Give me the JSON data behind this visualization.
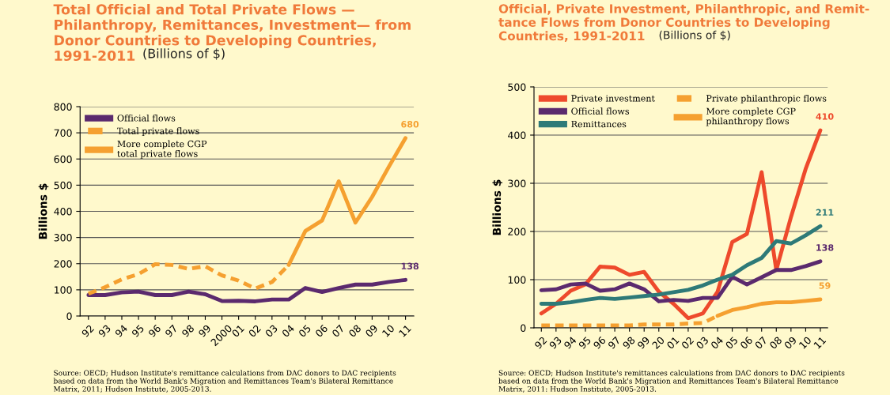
{
  "chart_data": [
    {
      "type": "line",
      "title": "Total Official and Total Private Flows —\nPhilanthropy, Remittances, Investment— from\nDonor Countries to Developing Countries,\n1991-2011",
      "subtitle": "(Billions of $)",
      "ylabel": "Billions $",
      "categories": [
        "92",
        "93",
        "94",
        "95",
        "96",
        "97",
        "98",
        "99",
        "2000",
        "01",
        "02",
        "03",
        "04",
        "05",
        "06",
        "07",
        "08",
        "09",
        "10",
        "11"
      ],
      "series": [
        {
          "name": "Official flows",
          "color": "#5b2a6e",
          "line_style": "solid",
          "values": [
            80,
            80,
            90,
            93,
            80,
            80,
            93,
            83,
            57,
            58,
            56,
            63,
            63,
            107,
            92,
            107,
            120,
            120,
            130,
            138
          ],
          "value_labels": [
            null,
            null,
            null,
            null,
            null,
            null,
            null,
            null,
            null,
            null,
            null,
            null,
            null,
            null,
            null,
            null,
            null,
            null,
            null,
            "138"
          ]
        },
        {
          "name": "Total private flows",
          "color": "#f5a030",
          "line_style": "dashed",
          "values": [
            85,
            110,
            140,
            160,
            198,
            195,
            180,
            190,
            155,
            135,
            105,
            130,
            195,
            null,
            null,
            null,
            null,
            null,
            null,
            null
          ]
        },
        {
          "name": "More complete CGP\ntotal private flows",
          "color": "#f5a030",
          "line_style": "solid",
          "values": [
            null,
            null,
            null,
            null,
            null,
            null,
            null,
            null,
            null,
            null,
            null,
            null,
            195,
            325,
            365,
            515,
            357,
            455,
            570,
            680
          ],
          "value_labels": [
            null,
            null,
            null,
            null,
            null,
            null,
            null,
            null,
            null,
            null,
            null,
            null,
            null,
            null,
            null,
            null,
            null,
            null,
            null,
            "680"
          ]
        }
      ],
      "ylim": [
        0,
        800
      ],
      "yticks": [
        0,
        100,
        200,
        300,
        400,
        500,
        600,
        700,
        800
      ],
      "grid": "y",
      "legend": "top left",
      "marker": "none",
      "annotations": [
        "Source: OECD; Hudson Institute's remittance calculations from DAC donors to DAC recipients based on data from the World Bank's Migration and Remittances Team's Bilateral Remittance Matrix, 2011; Hudson Institute, 2005-2013."
      ]
    },
    {
      "type": "line",
      "title": "Official, Private Investment, Philanthropic, and Remit-\ntance Flows from Donor Countries to Developing\nCountries, 1991-2011",
      "subtitle": "(Billions of $)",
      "ylabel": "Billions $",
      "categories": [
        "92",
        "93",
        "94",
        "95",
        "96",
        "97",
        "98",
        "99",
        "20",
        "01",
        "02",
        "03",
        "04",
        "05",
        "06",
        "07",
        "08",
        "09",
        "10",
        "11"
      ],
      "series": [
        {
          "name": "Private investment",
          "color": "#ee4a2c",
          "line_style": "solid",
          "values": [
            30,
            50,
            77,
            90,
            127,
            125,
            110,
            116,
            75,
            50,
            20,
            30,
            75,
            178,
            195,
            323,
            120,
            230,
            330,
            410
          ],
          "value_labels": [
            null,
            null,
            null,
            null,
            null,
            null,
            null,
            null,
            null,
            null,
            null,
            null,
            null,
            null,
            null,
            null,
            null,
            null,
            null,
            "410"
          ]
        },
        {
          "name": "Official flows",
          "color": "#5b2a6e",
          "line_style": "solid",
          "values": [
            78,
            80,
            90,
            92,
            77,
            80,
            92,
            80,
            55,
            58,
            56,
            62,
            62,
            106,
            90,
            105,
            120,
            120,
            128,
            138
          ],
          "value_labels": [
            null,
            null,
            null,
            null,
            null,
            null,
            null,
            null,
            null,
            null,
            null,
            null,
            null,
            null,
            null,
            null,
            null,
            null,
            null,
            "138"
          ]
        },
        {
          "name": "Remittances",
          "color": "#2e7a78",
          "line_style": "solid",
          "values": [
            50,
            50,
            53,
            58,
            62,
            60,
            63,
            66,
            69,
            74,
            79,
            88,
            100,
            110,
            130,
            145,
            180,
            175,
            192,
            211
          ],
          "value_labels": [
            null,
            null,
            null,
            null,
            null,
            null,
            null,
            null,
            null,
            null,
            null,
            null,
            null,
            null,
            null,
            null,
            null,
            null,
            null,
            "211"
          ]
        },
        {
          "name": "Private philanthropic flows",
          "color": "#f5a030",
          "line_style": "dashed",
          "values": [
            5,
            5,
            5,
            5,
            5,
            5,
            5,
            7,
            7,
            7,
            9,
            10,
            25,
            null,
            null,
            null,
            null,
            null,
            null,
            null
          ]
        },
        {
          "name": "More complete CGP\nphilanthropy flows",
          "color": "#f5a030",
          "line_style": "solid",
          "values": [
            null,
            null,
            null,
            null,
            null,
            null,
            null,
            null,
            null,
            null,
            null,
            null,
            25,
            37,
            43,
            50,
            53,
            53,
            56,
            59
          ],
          "value_labels": [
            null,
            null,
            null,
            null,
            null,
            null,
            null,
            null,
            null,
            null,
            null,
            null,
            null,
            null,
            null,
            null,
            null,
            null,
            null,
            "59"
          ]
        }
      ],
      "ylim": [
        0,
        500
      ],
      "yticks": [
        0,
        100,
        200,
        300,
        400,
        500
      ],
      "grid": "y",
      "legend": "top left",
      "marker": "none",
      "annotations": [
        "Source: OECD; Hudson Institute's remittances calculations from DAC donors to DAC recipients based on data from the World Bank's Migration and Remittances Team's Bilateral Remittance Matrix, 2011: Hudson Institute, 2005-2013."
      ]
    }
  ]
}
